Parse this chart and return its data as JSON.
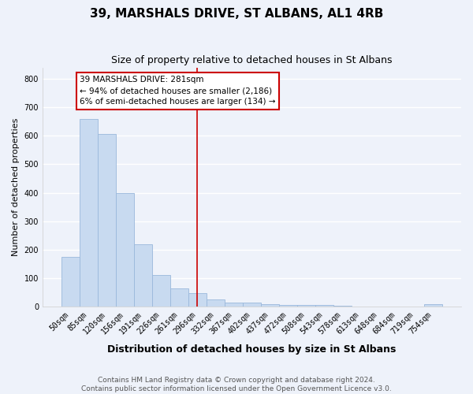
{
  "title": "39, MARSHALS DRIVE, ST ALBANS, AL1 4RB",
  "subtitle": "Size of property relative to detached houses in St Albans",
  "xlabel": "Distribution of detached houses by size in St Albans",
  "ylabel": "Number of detached properties",
  "bar_labels": [
    "50sqm",
    "85sqm",
    "120sqm",
    "156sqm",
    "191sqm",
    "226sqm",
    "261sqm",
    "296sqm",
    "332sqm",
    "367sqm",
    "402sqm",
    "437sqm",
    "472sqm",
    "508sqm",
    "543sqm",
    "578sqm",
    "613sqm",
    "648sqm",
    "684sqm",
    "719sqm",
    "754sqm"
  ],
  "bar_values": [
    175,
    660,
    605,
    400,
    218,
    110,
    65,
    48,
    25,
    15,
    15,
    8,
    5,
    5,
    5,
    3,
    0,
    0,
    0,
    0,
    8
  ],
  "bar_color": "#c8daf0",
  "bar_edge_color": "#9ab8dc",
  "vline_color": "#cc0000",
  "vline_pos": 7,
  "ylim": [
    0,
    840
  ],
  "yticks": [
    0,
    100,
    200,
    300,
    400,
    500,
    600,
    700,
    800
  ],
  "annotation_title": "39 MARSHALS DRIVE: 281sqm",
  "annotation_line1": "← 94% of detached houses are smaller (2,186)",
  "annotation_line2": "6% of semi-detached houses are larger (134) →",
  "annotation_box_color": "#ffffff",
  "annotation_box_edgecolor": "#cc0000",
  "footer1": "Contains HM Land Registry data © Crown copyright and database right 2024.",
  "footer2": "Contains public sector information licensed under the Open Government Licence v3.0.",
  "background_color": "#eef2fa",
  "grid_color": "#ffffff",
  "title_fontsize": 11,
  "subtitle_fontsize": 9,
  "ylabel_fontsize": 8,
  "xlabel_fontsize": 9,
  "tick_fontsize": 7,
  "footer_fontsize": 6.5
}
